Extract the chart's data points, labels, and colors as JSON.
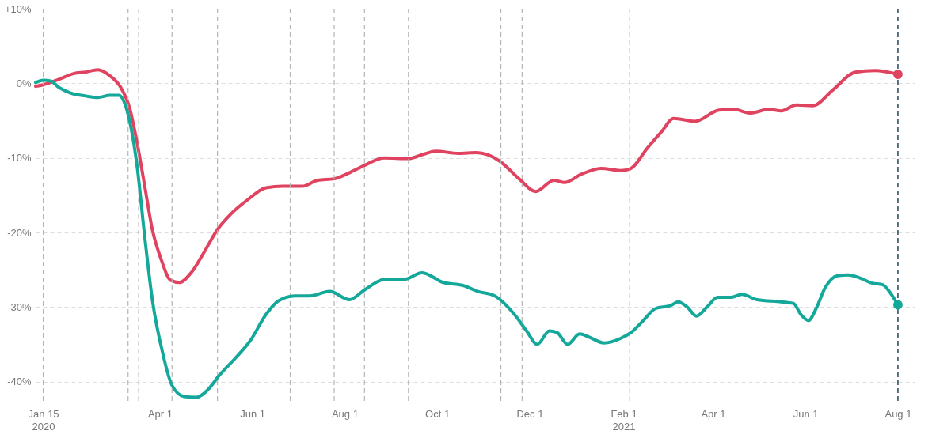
{
  "chart_data": {
    "type": "line",
    "xlim": [
      "2020-01-10",
      "2021-08-12"
    ],
    "ylim": [
      -43,
      10
    ],
    "yticks": [
      {
        "value": 10,
        "label": "+10%"
      },
      {
        "value": 0,
        "label": "0%"
      },
      {
        "value": -10,
        "label": "-10%"
      },
      {
        "value": -20,
        "label": "-20%"
      },
      {
        "value": -30,
        "label": "-30%"
      },
      {
        "value": -40,
        "label": "-40%"
      }
    ],
    "xticks": [
      {
        "value": "2020-01-15",
        "label": "Jan 15\n2020"
      },
      {
        "value": "2020-04-01",
        "label": "Apr 1"
      },
      {
        "value": "2020-06-01",
        "label": "Jun 1"
      },
      {
        "value": "2020-08-01",
        "label": "Aug 1"
      },
      {
        "value": "2020-10-01",
        "label": "Oct 1"
      },
      {
        "value": "2020-12-01",
        "label": "Dec 1"
      },
      {
        "value": "2021-02-01",
        "label": "Feb 1\n2021"
      },
      {
        "value": "2021-04-01",
        "label": "Apr 1"
      },
      {
        "value": "2021-06-01",
        "label": "Jun 1"
      },
      {
        "value": "2021-08-01",
        "label": "Aug 1"
      }
    ],
    "grid": "y",
    "series": [
      {
        "color": "#e0435f",
        "x": [
          "2020-01-10",
          "2020-01-15",
          "2020-01-25",
          "2020-02-04",
          "2020-02-12",
          "2020-02-20",
          "2020-02-28",
          "2020-03-06",
          "2020-03-12",
          "2020-03-17",
          "2020-03-22",
          "2020-03-27",
          "2020-04-02",
          "2020-04-08",
          "2020-04-14",
          "2020-04-22",
          "2020-04-30",
          "2020-05-09",
          "2020-05-18",
          "2020-05-29",
          "2020-06-10",
          "2020-06-21",
          "2020-07-04",
          "2020-07-14",
          "2020-07-25",
          "2020-08-04",
          "2020-08-14",
          "2020-08-27",
          "2020-09-12",
          "2020-09-22",
          "2020-09-30",
          "2020-10-15",
          "2020-10-27",
          "2020-11-11",
          "2020-11-24",
          "2020-12-05",
          "2020-12-17",
          "2020-12-24",
          "2021-01-04",
          "2021-01-17",
          "2021-01-30",
          "2021-02-05",
          "2021-02-17",
          "2021-02-26",
          "2021-03-06",
          "2021-03-20",
          "2021-04-05",
          "2021-04-15",
          "2021-04-25",
          "2021-05-08",
          "2021-05-16",
          "2021-05-26",
          "2021-06-06",
          "2021-06-19",
          "2021-07-04",
          "2021-07-17",
          "2021-08-01"
        ],
        "values": [
          -0.4,
          -0.2,
          0.5,
          1.3,
          1.5,
          1.8,
          1.0,
          -0.5,
          -3.3,
          -8,
          -13.8,
          -19.6,
          -23.7,
          -26.4,
          -26.7,
          -25.3,
          -22.7,
          -19.6,
          -17.5,
          -15.6,
          -14,
          -13.8,
          -13.8,
          -13,
          -12.8,
          -12,
          -11,
          -10,
          -10.1,
          -9.5,
          -9.1,
          -9.4,
          -9.3,
          -10.4,
          -12.8,
          -14.5,
          -13,
          -13.3,
          -12.2,
          -11.4,
          -11.7,
          -11.5,
          -8.6,
          -6.5,
          -4.7,
          -5.1,
          -3.6,
          -3.5,
          -4,
          -3.5,
          -3.7,
          -2.9,
          -3,
          -0.9,
          1.5,
          1.7,
          1.2
        ]
      },
      {
        "color": "#14a89b",
        "x": [
          "2020-01-10",
          "2020-01-15",
          "2020-01-20",
          "2020-01-25",
          "2020-02-02",
          "2020-02-12",
          "2020-02-20",
          "2020-02-28",
          "2020-03-05",
          "2020-03-09",
          "2020-03-13",
          "2020-03-17",
          "2020-03-22",
          "2020-03-27",
          "2020-04-03",
          "2020-04-09",
          "2020-04-17",
          "2020-04-25",
          "2020-05-03",
          "2020-05-10",
          "2020-05-21",
          "2020-05-31",
          "2020-06-10",
          "2020-06-18",
          "2020-06-29",
          "2020-07-09",
          "2020-07-22",
          "2020-08-04",
          "2020-08-14",
          "2020-08-27",
          "2020-09-09",
          "2020-09-21",
          "2020-10-05",
          "2020-10-18",
          "2020-10-28",
          "2020-11-08",
          "2020-11-21",
          "2020-11-29",
          "2020-12-06",
          "2020-12-14",
          "2020-12-19",
          "2020-12-26",
          "2021-01-03",
          "2021-01-09",
          "2021-01-19",
          "2021-01-30",
          "2021-02-06",
          "2021-02-14",
          "2021-02-22",
          "2021-03-04",
          "2021-03-09",
          "2021-03-15",
          "2021-03-21",
          "2021-03-28",
          "2021-04-04",
          "2021-04-13",
          "2021-04-20",
          "2021-04-30",
          "2021-05-16",
          "2021-05-24",
          "2021-05-29",
          "2021-06-03",
          "2021-06-08",
          "2021-06-14",
          "2021-06-22",
          "2021-06-29",
          "2021-07-07",
          "2021-07-15",
          "2021-07-22",
          "2021-07-27",
          "2021-08-01"
        ],
        "values": [
          0.1,
          0.4,
          0.3,
          -0.5,
          -1.3,
          -1.7,
          -1.9,
          -1.6,
          -1.6,
          -2.8,
          -6,
          -11.2,
          -20.6,
          -29,
          -36.3,
          -40.5,
          -42,
          -42.1,
          -41,
          -39.2,
          -36.8,
          -34.4,
          -31,
          -29.2,
          -28.5,
          -28.5,
          -27.9,
          -29,
          -27.7,
          -26.3,
          -26.3,
          -25.4,
          -26.7,
          -27.1,
          -27.9,
          -28.5,
          -31,
          -33.2,
          -35,
          -33.2,
          -33.4,
          -35,
          -33.6,
          -34,
          -34.8,
          -34.2,
          -33.4,
          -31.8,
          -30.2,
          -29.8,
          -29.3,
          -30,
          -31.2,
          -30,
          -28.7,
          -28.7,
          -28.3,
          -29,
          -29.3,
          -29.5,
          -31,
          -31.8,
          -30.2,
          -27.4,
          -25.8,
          -25.7,
          -26.1,
          -26.8,
          -27,
          -28.1,
          -29.7
        ]
      }
    ],
    "ref_lines": [
      {
        "axis": "x",
        "value": "2020-01-15",
        "color": "#b4b4b4",
        "line_style": "dashed"
      },
      {
        "axis": "x",
        "value": "2020-03-11",
        "color": "#b4b4b4",
        "line_style": "dashed"
      },
      {
        "axis": "x",
        "value": "2020-03-18",
        "color": "#b4b4b4",
        "line_style": "dashed"
      },
      {
        "axis": "x",
        "value": "2020-04-09",
        "color": "#b4b4b4",
        "line_style": "dashed"
      },
      {
        "axis": "x",
        "value": "2020-05-09",
        "color": "#b4b4b4",
        "line_style": "dashed"
      },
      {
        "axis": "x",
        "value": "2020-06-26",
        "color": "#b4b4b4",
        "line_style": "dashed"
      },
      {
        "axis": "x",
        "value": "2020-07-25",
        "color": "#b4b4b4",
        "line_style": "dashed"
      },
      {
        "axis": "x",
        "value": "2020-08-14",
        "color": "#b4b4b4",
        "line_style": "dashed"
      },
      {
        "axis": "x",
        "value": "2020-09-12",
        "color": "#b4b4b4",
        "line_style": "dashed"
      },
      {
        "axis": "x",
        "value": "2020-11-12",
        "color": "#b4b4b4",
        "line_style": "dashed"
      },
      {
        "axis": "x",
        "value": "2020-11-26",
        "color": "#b4b4b4",
        "line_style": "dashed"
      },
      {
        "axis": "x",
        "value": "2021-02-05",
        "color": "#b4b4b4",
        "line_style": "dashed"
      },
      {
        "axis": "x",
        "value": "2021-08-01",
        "color": "#1f4a5c",
        "line_style": "dashed"
      }
    ],
    "marker": "none",
    "line_style": "solid"
  }
}
